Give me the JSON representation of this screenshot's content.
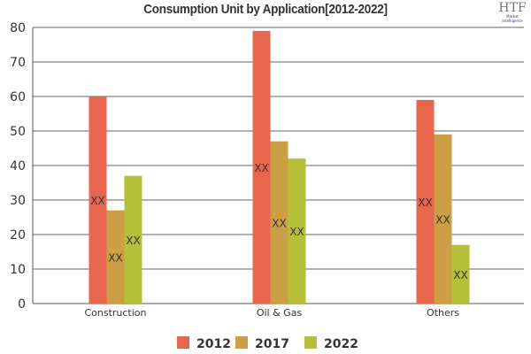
{
  "chart_data": {
    "type": "bar",
    "title": "Consumption Unit by  Application[2012-2022]",
    "categories": [
      "Construction",
      "Oil & Gas",
      "Others"
    ],
    "series": [
      {
        "name": "2012",
        "color": "#e8664e",
        "values": [
          60,
          79,
          59
        ]
      },
      {
        "name": "2017",
        "color": "#cc9e45",
        "values": [
          27,
          47,
          49
        ]
      },
      {
        "name": "2022",
        "color": "#b5bf3a",
        "values": [
          37,
          42,
          17
        ]
      }
    ],
    "data_label": "XX",
    "ylim": [
      0,
      80
    ],
    "yticks": [
      0,
      10,
      20,
      30,
      40,
      50,
      60,
      70,
      80
    ],
    "grid": true,
    "legend_position": "bottom"
  },
  "logo": {
    "text": "HTF",
    "subtext": "Market Intelligence"
  }
}
